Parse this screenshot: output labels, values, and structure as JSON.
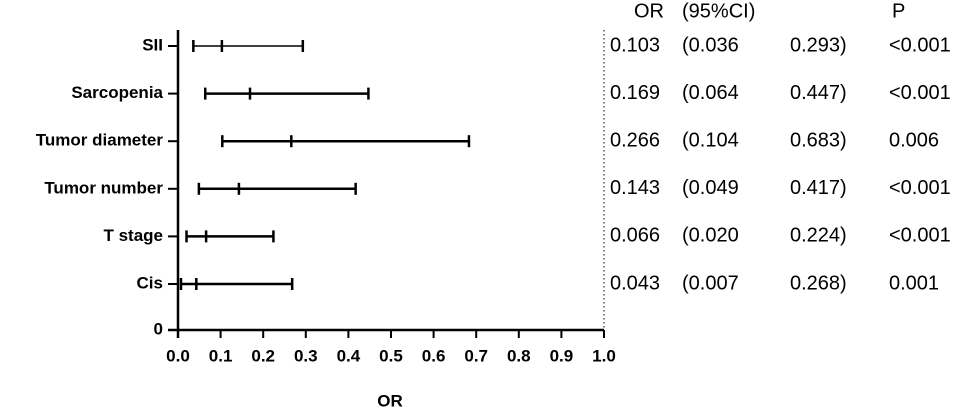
{
  "chart_data": {
    "type": "forest",
    "categories": [
      "SII",
      "Sarcopenia",
      "Tumor diameter",
      "Tumor number",
      "T stage",
      "Cis"
    ],
    "y_origin_label": "0",
    "estimate": {
      "header": "OR",
      "values": [
        0.103,
        0.169,
        0.266,
        0.143,
        0.066,
        0.043
      ]
    },
    "lower": {
      "header": "(95%CI)",
      "values": [
        0.036,
        0.064,
        0.104,
        0.049,
        0.02,
        0.007
      ],
      "value_labels": [
        "(0.036",
        "(0.064",
        "(0.104",
        "(0.049",
        "(0.020",
        "(0.007"
      ]
    },
    "upper": {
      "values": [
        0.293,
        0.447,
        0.683,
        0.417,
        0.224,
        0.268
      ],
      "value_labels": [
        "0.293)",
        "0.447)",
        "0.683)",
        "0.417)",
        "0.224)",
        "0.268)"
      ]
    },
    "p": {
      "header": "P",
      "labels": [
        "<0.001",
        "<0.001",
        "0.006",
        "<0.001",
        "<0.001",
        "0.001"
      ]
    },
    "xlabel": "OR",
    "xlim": [
      0,
      1
    ],
    "xticks": [
      {
        "value": 0,
        "label": "0.0"
      },
      0.1,
      0.2,
      0.3,
      0.4,
      0.5,
      0.6,
      0.7,
      0.8,
      0.9,
      {
        "value": 1,
        "label": "1.0"
      }
    ],
    "color": "#000000"
  }
}
